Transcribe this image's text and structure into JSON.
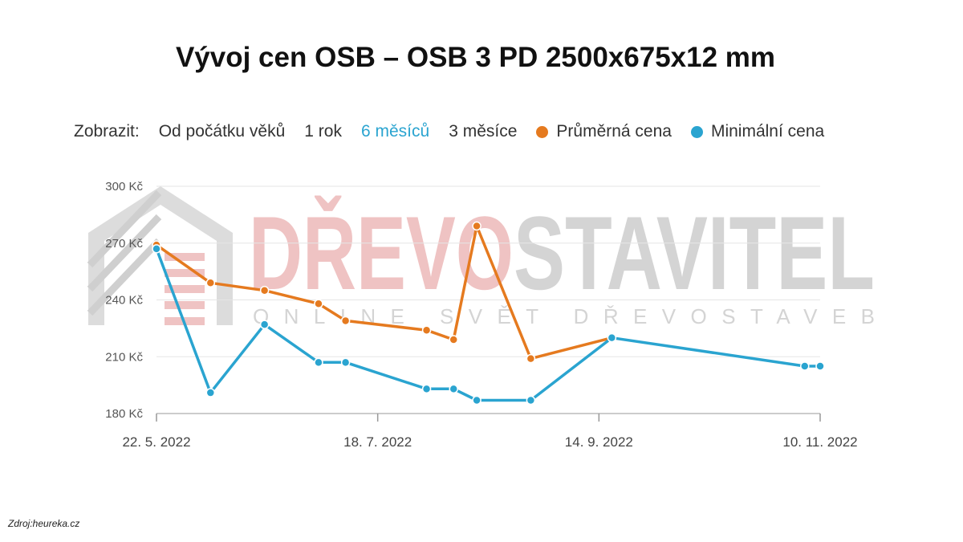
{
  "title": "Vývoj cen OSB – OSB 3 PD 2500x675x12 mm",
  "controls": {
    "label": "Zobrazit:",
    "options": [
      "Od počátku věků",
      "1 rok",
      "6 měsíců",
      "3 měsíce"
    ],
    "active_option": "6 měsíců"
  },
  "watermark": {
    "brand_red": "DŘEVO",
    "brand_gray": "STAVITEL",
    "tagline": "ONLINE SVĚT DŘEVOSTAVEB"
  },
  "source": "Zdroj:heureka.cz",
  "colors": {
    "avg": "#e57a1f",
    "min": "#2aa4d0",
    "active_option": "#2aa4d0",
    "watermark_red": "#efc3c3",
    "watermark_gray": "#d4d4d4"
  },
  "chart_data": {
    "type": "line",
    "title": "Vývoj cen OSB – OSB 3 PD 2500x675x12 mm",
    "xlabel": "",
    "ylabel": "",
    "x_ticks": [
      "22. 5. 2022",
      "18. 7. 2022",
      "14. 9. 2022",
      "10. 11. 2022"
    ],
    "y_ticks": [
      "180 Kč",
      "210 Kč",
      "240 Kč",
      "270 Kč",
      "300 Kč"
    ],
    "ylim": [
      180,
      300
    ],
    "xlim": [
      "2022-05-22",
      "2022-11-10"
    ],
    "grid": true,
    "legend": "top",
    "series": [
      {
        "name": "Průměrná cena",
        "color": "#e57a1f",
        "points": [
          {
            "x": "2022-05-22",
            "y": 269
          },
          {
            "x": "2022-06-05",
            "y": 249
          },
          {
            "x": "2022-06-19",
            "y": 245
          },
          {
            "x": "2022-07-03",
            "y": 238
          },
          {
            "x": "2022-07-10",
            "y": 229
          },
          {
            "x": "2022-07-31",
            "y": 224
          },
          {
            "x": "2022-08-07",
            "y": 219
          },
          {
            "x": "2022-08-13",
            "y": 279
          },
          {
            "x": "2022-08-27",
            "y": 209
          },
          {
            "x": "2022-09-17",
            "y": 220
          }
        ]
      },
      {
        "name": "Minimální cena",
        "color": "#2aa4d0",
        "points": [
          {
            "x": "2022-05-22",
            "y": 267
          },
          {
            "x": "2022-06-05",
            "y": 191
          },
          {
            "x": "2022-06-19",
            "y": 227
          },
          {
            "x": "2022-07-03",
            "y": 207
          },
          {
            "x": "2022-07-10",
            "y": 207
          },
          {
            "x": "2022-07-31",
            "y": 193
          },
          {
            "x": "2022-08-07",
            "y": 193
          },
          {
            "x": "2022-08-13",
            "y": 187
          },
          {
            "x": "2022-08-27",
            "y": 187
          },
          {
            "x": "2022-09-17",
            "y": 220
          },
          {
            "x": "2022-11-06",
            "y": 205
          },
          {
            "x": "2022-11-10",
            "y": 205
          }
        ]
      }
    ]
  }
}
